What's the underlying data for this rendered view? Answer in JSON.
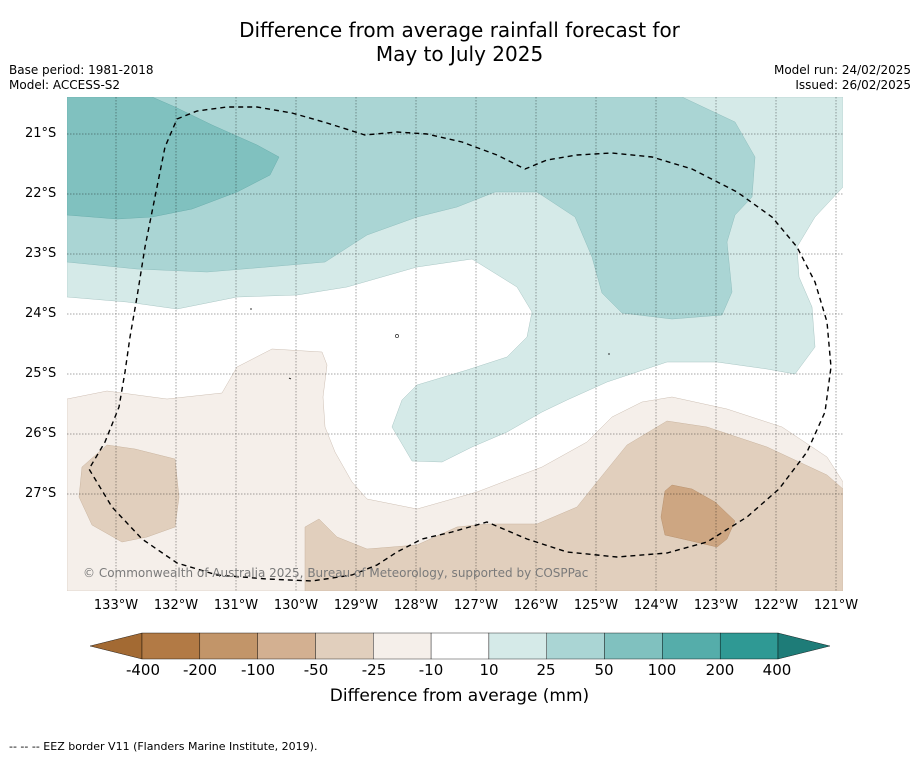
{
  "title": {
    "line1": "Difference from average rainfall forecast for",
    "line2": "May to July 2025"
  },
  "meta": {
    "base_period": "Base period: 1981-2018",
    "model": "Model: ACCESS-S2",
    "model_run": "Model run: 24/02/2025",
    "issued": "Issued: 26/02/2025"
  },
  "map": {
    "lat_labels": [
      "21°S",
      "22°S",
      "23°S",
      "24°S",
      "25°S",
      "26°S",
      "27°S"
    ],
    "lon_labels": [
      "133°W",
      "132°W",
      "131°W",
      "130°W",
      "129°W",
      "128°W",
      "127°W",
      "126°W",
      "125°W",
      "124°W",
      "123°W",
      "122°W",
      "121°W"
    ],
    "copyright": "© Commonwealth of Australia 2025, Bureau of Meteorology, supported by COSPPac",
    "colors": {
      "dry3": "#cda682",
      "dry2": "#e1cfbd",
      "dry1": "#f5efea",
      "neutral": "#ffffff",
      "wet1": "#d5eae8",
      "wet2": "#aad5d4",
      "wet3": "#80c1bf"
    }
  },
  "colorbar": {
    "ticks": [
      "-400",
      "-200",
      "-100",
      "-50",
      "-25",
      "-10",
      "10",
      "25",
      "50",
      "100",
      "200",
      "400"
    ],
    "colors": [
      "#a36a33",
      "#b27a45",
      "#c29569",
      "#d3b091",
      "#e1cfbd",
      "#f5efea",
      "#ffffff",
      "#d5eae8",
      "#aad5d4",
      "#80c1bf",
      "#55adaa",
      "#2f9994",
      "#1e7c78"
    ],
    "title": "Difference from average (mm)"
  },
  "footer": {
    "eez_legend": "--  --  -- EEZ border V11 (Flanders Marine Institute, 2019)."
  }
}
